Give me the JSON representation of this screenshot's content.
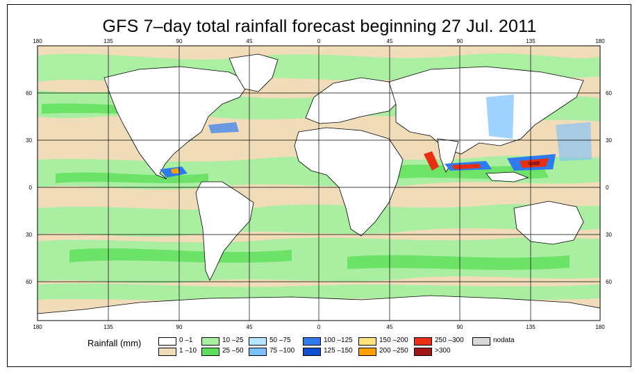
{
  "title": "GFS 7–day total rainfall forecast beginning 27 Jul. 2011",
  "map": {
    "lon_labels": [
      "180",
      "135",
      "90",
      "45",
      "0",
      "45",
      "90",
      "135",
      "180"
    ],
    "lat_labels": [
      "60",
      "30",
      "0",
      "30",
      "60"
    ],
    "colors": {
      "ocean_land_dry": "#ffffff",
      "r1_10": "#f0dcb8",
      "r10_25": "#a6f0a0",
      "r25_50": "#7ee87a",
      "r50_75": "#b4e6ff",
      "r100_125": "#2e7bf0",
      "r150_200": "#ffd84a",
      "r200_250": "#ffa000",
      "r250_300": "#e83010",
      "gt300": "#a01818"
    }
  },
  "legend": {
    "title": "Rainfall (mm)",
    "items": [
      {
        "label": "0 –1",
        "color": "#ffffff"
      },
      {
        "label": "1 –10",
        "color": "#f0dcb8"
      },
      {
        "label": "10 –25",
        "color": "#a6f0a0"
      },
      {
        "label": "25 –50",
        "color": "#5ee05a"
      },
      {
        "label": "50 –75",
        "color": "#b4e6ff"
      },
      {
        "label": "75 –100",
        "color": "#78c0ff"
      },
      {
        "label": "100 –125",
        "color": "#2e7bf0"
      },
      {
        "label": "125 –150",
        "color": "#1050d0"
      },
      {
        "label": "150 –200",
        "color": "#ffe27a"
      },
      {
        "label": "200 –250",
        "color": "#ffa000"
      },
      {
        "label": "250 –300",
        "color": "#e83010"
      },
      {
        "label": ">300",
        "color": "#a01818"
      },
      {
        "label": "nodata",
        "color": "#d8d8d8"
      }
    ]
  }
}
